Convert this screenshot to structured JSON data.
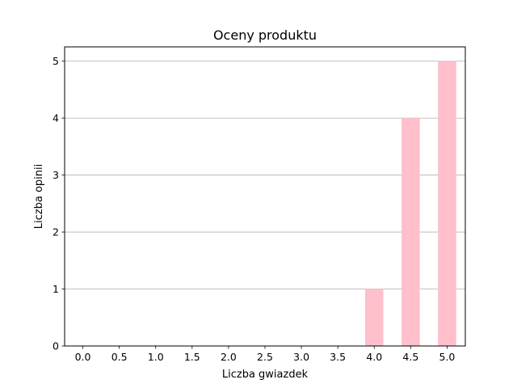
{
  "chart_data": {
    "type": "bar",
    "title": "Oceny produktu",
    "xlabel": "Liczba gwiazdek",
    "ylabel": "Liczba opinii",
    "x": [
      4.0,
      4.5,
      5.0
    ],
    "values": [
      1,
      4,
      5
    ],
    "xticks": [
      "0.0",
      "0.5",
      "1.0",
      "1.5",
      "2.0",
      "2.5",
      "3.0",
      "3.5",
      "4.0",
      "4.5",
      "5.0"
    ],
    "yticks": [
      "0",
      "1",
      "2",
      "3",
      "4",
      "5"
    ],
    "xlim": [
      -0.25,
      5.25
    ],
    "ylim": [
      0,
      5.25
    ],
    "bar_width": 0.25,
    "bar_color": "#ffc0cb",
    "grid": "y",
    "legend": "none"
  }
}
